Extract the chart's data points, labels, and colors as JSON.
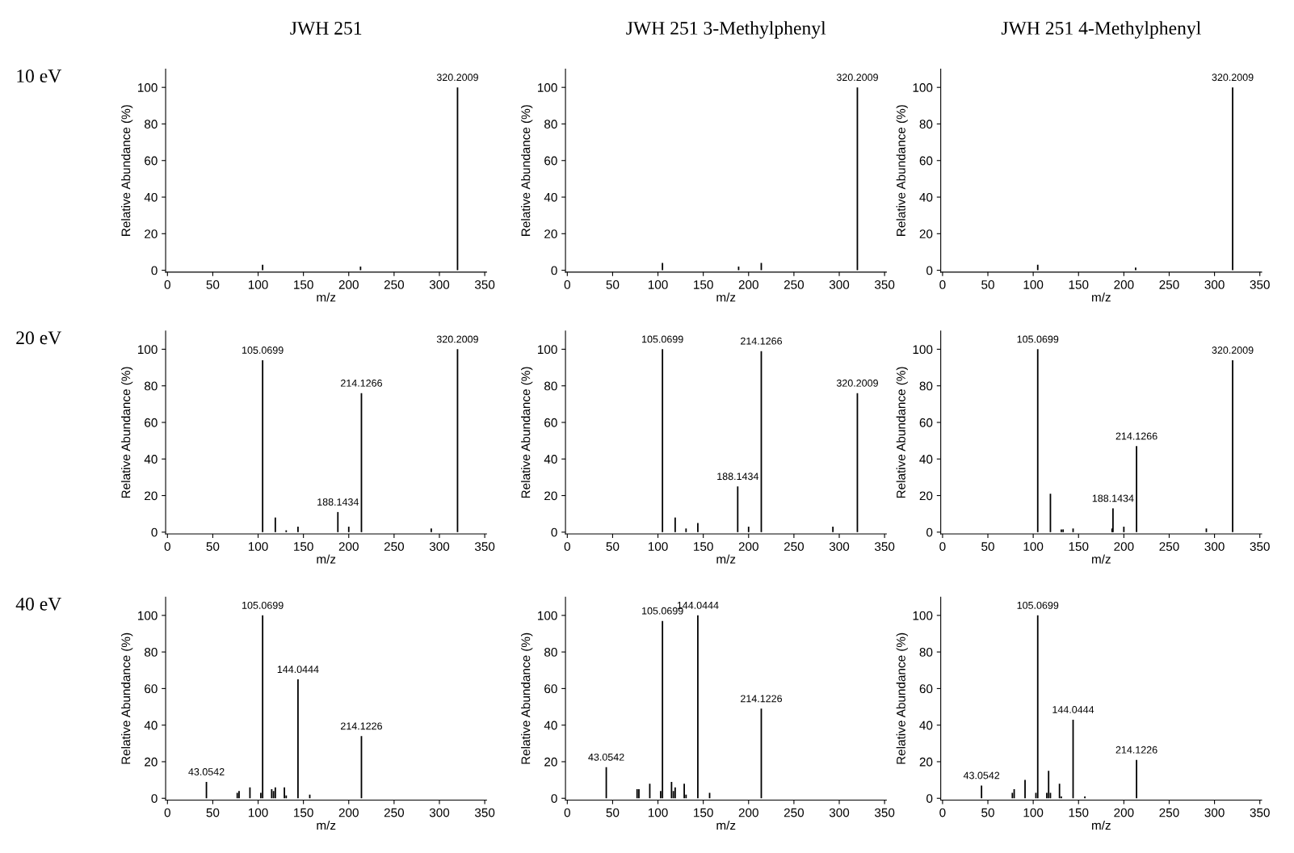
{
  "chart_data": [
    {
      "type": "bar",
      "title": "JWH 251",
      "subtitle": "10 eV",
      "xlabel": "m/z",
      "ylabel": "Relative Abundance (%)",
      "color": "#000000",
      "xlim": [
        -2,
        352
      ],
      "ylim": [
        -1,
        110
      ],
      "xticks": [
        0,
        50,
        100,
        150,
        200,
        250,
        300,
        350
      ],
      "yticks": [
        0,
        20,
        40,
        60,
        80,
        100
      ],
      "x": [
        105,
        213,
        320
      ],
      "values": [
        3,
        2,
        100
      ],
      "annotations": [
        {
          "text": "320.2009",
          "x": 320,
          "y": 100
        }
      ]
    },
    {
      "type": "bar",
      "title": "JWH 251 3-Methylphenyl",
      "xlabel": "m/z",
      "ylabel": "Relative Abundance (%)",
      "color": "#000000",
      "xlim": [
        -2,
        352
      ],
      "ylim": [
        -1,
        110
      ],
      "xticks": [
        0,
        50,
        100,
        150,
        200,
        250,
        300,
        350
      ],
      "yticks": [
        0,
        20,
        40,
        60,
        80,
        100
      ],
      "x": [
        105,
        189,
        214,
        320
      ],
      "values": [
        4,
        2,
        4,
        100
      ],
      "annotations": [
        {
          "text": "320.2009",
          "x": 320,
          "y": 100
        }
      ]
    },
    {
      "type": "bar",
      "title": "JWH 251 4-Methylphenyl",
      "xlabel": "m/z",
      "ylabel": "Relative Abundance (%)",
      "color": "#000000",
      "xlim": [
        -2,
        352
      ],
      "ylim": [
        -1,
        110
      ],
      "xticks": [
        0,
        50,
        100,
        150,
        200,
        250,
        300,
        350
      ],
      "yticks": [
        0,
        20,
        40,
        60,
        80,
        100
      ],
      "x": [
        105,
        213,
        320
      ],
      "values": [
        3,
        1.5,
        100
      ],
      "annotations": [
        {
          "text": "320.2009",
          "x": 320,
          "y": 100
        }
      ]
    },
    {
      "type": "bar",
      "subtitle": "20 eV",
      "xlabel": "m/z",
      "ylabel": "Relative Abundance (%)",
      "color": "#000000",
      "xlim": [
        -2,
        352
      ],
      "ylim": [
        -1,
        110
      ],
      "xticks": [
        0,
        50,
        100,
        150,
        200,
        250,
        300,
        350
      ],
      "yticks": [
        0,
        20,
        40,
        60,
        80,
        100
      ],
      "x": [
        105,
        119,
        131,
        144,
        188,
        200,
        214,
        291,
        320
      ],
      "values": [
        94,
        8,
        1,
        3,
        11,
        3,
        76,
        2,
        100
      ],
      "annotations": [
        {
          "text": "105.0699",
          "x": 105,
          "y": 94
        },
        {
          "text": "188.1434",
          "x": 188,
          "y": 11
        },
        {
          "text": "214.1266",
          "x": 214,
          "y": 76
        },
        {
          "text": "320.2009",
          "x": 320,
          "y": 100
        }
      ]
    },
    {
      "type": "bar",
      "xlabel": "m/z",
      "ylabel": "Relative Abundance (%)",
      "color": "#000000",
      "xlim": [
        -2,
        352
      ],
      "ylim": [
        -1,
        110
      ],
      "xticks": [
        0,
        50,
        100,
        150,
        200,
        250,
        300,
        350
      ],
      "yticks": [
        0,
        20,
        40,
        60,
        80,
        100
      ],
      "x": [
        105,
        119,
        131,
        144,
        188,
        200,
        214,
        293,
        320
      ],
      "values": [
        100,
        8,
        2,
        5,
        25,
        3,
        99,
        3,
        76
      ],
      "annotations": [
        {
          "text": "105.0699",
          "x": 105,
          "y": 100
        },
        {
          "text": "188.1434",
          "x": 188,
          "y": 25
        },
        {
          "text": "214.1266",
          "x": 214,
          "y": 99
        },
        {
          "text": "320.2009",
          "x": 320,
          "y": 76
        }
      ]
    },
    {
      "type": "bar",
      "xlabel": "m/z",
      "ylabel": "Relative Abundance (%)",
      "color": "#000000",
      "xlim": [
        -2,
        352
      ],
      "ylim": [
        -1,
        110
      ],
      "xticks": [
        0,
        50,
        100,
        150,
        200,
        250,
        300,
        350
      ],
      "yticks": [
        0,
        20,
        40,
        60,
        80,
        100
      ],
      "x": [
        105,
        119,
        131,
        133,
        144,
        187,
        188,
        200,
        214,
        291,
        320
      ],
      "values": [
        100,
        21,
        1.5,
        1.5,
        2,
        2,
        13,
        3,
        47,
        2,
        94
      ],
      "annotations": [
        {
          "text": "105.0699",
          "x": 105,
          "y": 100
        },
        {
          "text": "188.1434",
          "x": 188,
          "y": 13
        },
        {
          "text": "214.1266",
          "x": 214,
          "y": 47
        },
        {
          "text": "320.2009",
          "x": 320,
          "y": 94
        }
      ]
    },
    {
      "type": "bar",
      "subtitle": "40 eV",
      "xlabel": "m/z",
      "ylabel": "Relative Abundance (%)",
      "color": "#000000",
      "xlim": [
        -2,
        352
      ],
      "ylim": [
        -1,
        110
      ],
      "xticks": [
        0,
        50,
        100,
        150,
        200,
        250,
        300,
        350
      ],
      "yticks": [
        0,
        20,
        40,
        60,
        80,
        100
      ],
      "x": [
        43,
        77,
        79,
        91,
        103,
        105,
        115,
        117,
        119,
        129,
        131,
        144,
        157,
        214
      ],
      "values": [
        9,
        3,
        4,
        6,
        3,
        100,
        5,
        4,
        6,
        6,
        1.5,
        65,
        2,
        34
      ],
      "annotations": [
        {
          "text": "43.0542",
          "x": 43,
          "y": 9
        },
        {
          "text": "105.0699",
          "x": 105,
          "y": 100
        },
        {
          "text": "144.0444",
          "x": 144,
          "y": 65
        },
        {
          "text": "214.1226",
          "x": 214,
          "y": 34
        }
      ]
    },
    {
      "type": "bar",
      "xlabel": "m/z",
      "ylabel": "Relative Abundance (%)",
      "color": "#000000",
      "xlim": [
        -2,
        352
      ],
      "ylim": [
        -1,
        110
      ],
      "xticks": [
        0,
        50,
        100,
        150,
        200,
        250,
        300,
        350
      ],
      "yticks": [
        0,
        20,
        40,
        60,
        80,
        100
      ],
      "x": [
        43,
        77,
        79,
        91,
        103,
        105,
        115,
        117,
        119,
        129,
        131,
        144,
        157,
        214
      ],
      "values": [
        17,
        5,
        5,
        8,
        4,
        97,
        9,
        4,
        6,
        8,
        2,
        100,
        3,
        49
      ],
      "annotations": [
        {
          "text": "43.0542",
          "x": 43,
          "y": 17
        },
        {
          "text": "105.0699",
          "x": 105,
          "y": 97
        },
        {
          "text": "144.0444",
          "x": 144,
          "y": 100
        },
        {
          "text": "214.1226",
          "x": 214,
          "y": 49
        }
      ]
    },
    {
      "type": "bar",
      "xlabel": "m/z",
      "ylabel": "Relative Abundance (%)",
      "color": "#000000",
      "xlim": [
        -2,
        352
      ],
      "ylim": [
        -1,
        110
      ],
      "xticks": [
        0,
        50,
        100,
        150,
        200,
        250,
        300,
        350
      ],
      "yticks": [
        0,
        20,
        40,
        60,
        80,
        100
      ],
      "x": [
        43,
        77,
        79,
        91,
        103,
        105,
        115,
        117,
        119,
        129,
        131,
        144,
        157,
        214
      ],
      "values": [
        7,
        3,
        5,
        10,
        3,
        100,
        3,
        15,
        3,
        8,
        1,
        43,
        1,
        21
      ],
      "annotations": [
        {
          "text": "43.0542",
          "x": 43,
          "y": 7
        },
        {
          "text": "105.0699",
          "x": 105,
          "y": 100
        },
        {
          "text": "144.0444",
          "x": 144,
          "y": 43
        },
        {
          "text": "214.1226",
          "x": 214,
          "y": 21
        }
      ]
    }
  ]
}
